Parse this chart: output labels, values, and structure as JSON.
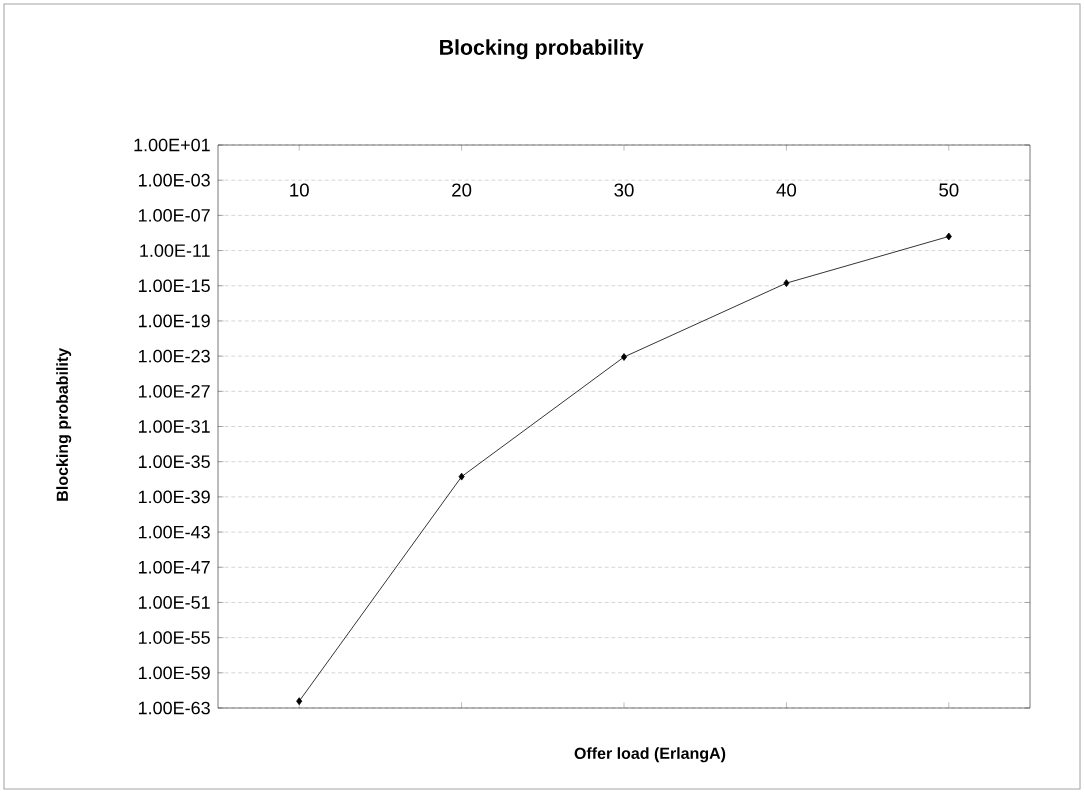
{
  "chart_data": {
    "type": "line",
    "title": "Blocking probability",
    "xlabel": "Offer load (ErlangA)",
    "ylabel": "Blocking probability",
    "categories": [
      "10",
      "20",
      "30",
      "40",
      "50"
    ],
    "series": [
      {
        "color": "#000000",
        "values": [
          6e-63,
          2e-37,
          8e-24,
          2e-15,
          4e-10
        ]
      }
    ],
    "log": "y",
    "ylim": [
      1e-63,
      10
    ],
    "yticks": [
      {
        "value": 10,
        "label": "1.00E+01"
      },
      {
        "value": 0.001,
        "label": "1.00E-03"
      },
      {
        "value": 1e-07,
        "label": "1.00E-07"
      },
      {
        "value": 1e-11,
        "label": "1.00E-11"
      },
      {
        "value": 1e-15,
        "label": "1.00E-15"
      },
      {
        "value": 1e-19,
        "label": "1.00E-19"
      },
      {
        "value": 1e-23,
        "label": "1.00E-23"
      },
      {
        "value": 1e-27,
        "label": "1.00E-27"
      },
      {
        "value": 1e-31,
        "label": "1.00E-31"
      },
      {
        "value": 1e-35,
        "label": "1.00E-35"
      },
      {
        "value": 1e-39,
        "label": "1.00E-39"
      },
      {
        "value": 1e-43,
        "label": "1.00E-43"
      },
      {
        "value": 1e-47,
        "label": "1.00E-47"
      },
      {
        "value": 1e-51,
        "label": "1.00E-51"
      },
      {
        "value": 1e-55,
        "label": "1.00E-55"
      },
      {
        "value": 1e-59,
        "label": "1.00E-59"
      },
      {
        "value": 1e-63,
        "label": "1.00E-63"
      }
    ],
    "grid": "y",
    "marker": "diamond",
    "line_style": "solid"
  }
}
